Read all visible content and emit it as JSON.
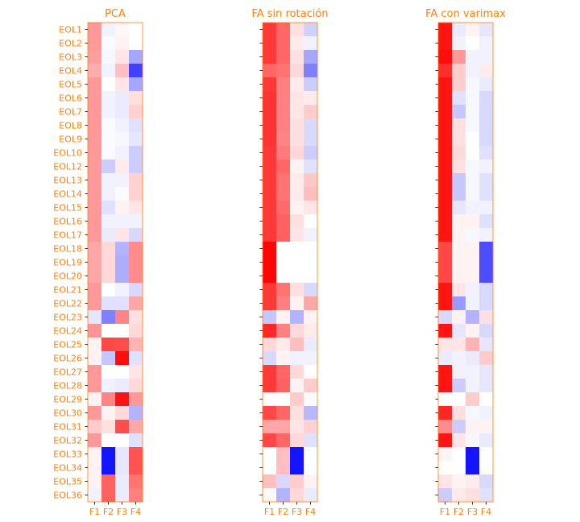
{
  "chart_data": [
    {
      "type": "heatmap",
      "title": "PCA",
      "x_categories": [
        "F1",
        "F2",
        "F3",
        "F4"
      ],
      "y_categories": [
        "EOL1",
        "EOL2",
        "EOL3",
        "EOL4",
        "EOL5",
        "EOL6",
        "EOL7",
        "EOL8",
        "EOL9",
        "EOL10",
        "EOL12",
        "EOL13",
        "EOL14",
        "EOL15",
        "EOL16",
        "EOL17",
        "EOL18",
        "EOL19",
        "EOL20",
        "EOL21",
        "EOL22",
        "EOL23",
        "EOL24",
        "EOL25",
        "EOL26",
        "EOL27",
        "EOL28",
        "EOL29",
        "EOL30",
        "EOL31",
        "EOL32",
        "EOL33",
        "EOL34",
        "EOL35",
        "EOL36"
      ],
      "colormap": "bwr",
      "vlim": [
        -1,
        1
      ],
      "values": [
        [
          0.4,
          -0.05,
          0.03,
          0.0
        ],
        [
          0.4,
          -0.02,
          0.05,
          0.0
        ],
        [
          0.38,
          -0.03,
          0.1,
          -0.35
        ],
        [
          0.32,
          -0.05,
          0.25,
          -0.75
        ],
        [
          0.4,
          0.0,
          0.1,
          -0.35
        ],
        [
          0.4,
          -0.05,
          -0.08,
          0.12
        ],
        [
          0.4,
          -0.05,
          -0.08,
          0.18
        ],
        [
          0.4,
          -0.02,
          -0.05,
          -0.12
        ],
        [
          0.4,
          -0.02,
          -0.03,
          -0.1
        ],
        [
          0.4,
          -0.02,
          -0.05,
          -0.2
        ],
        [
          0.4,
          -0.2,
          0.08,
          -0.2
        ],
        [
          0.4,
          -0.05,
          -0.05,
          0.18
        ],
        [
          0.4,
          -0.05,
          -0.02,
          0.18
        ],
        [
          0.4,
          -0.12,
          0.05,
          0.1
        ],
        [
          0.4,
          -0.05,
          -0.05,
          -0.05
        ],
        [
          0.4,
          -0.08,
          0.1,
          -0.15
        ],
        [
          0.35,
          0.15,
          -0.3,
          0.45
        ],
        [
          0.35,
          0.15,
          -0.32,
          0.45
        ],
        [
          0.35,
          0.15,
          -0.32,
          0.45
        ],
        [
          0.4,
          0.0,
          -0.05,
          -0.15
        ],
        [
          0.4,
          -0.12,
          -0.12,
          0.35
        ],
        [
          -0.1,
          -0.5,
          0.48,
          0.12
        ],
        [
          0.42,
          0.0,
          0.0,
          0.15
        ],
        [
          0.05,
          0.72,
          0.7,
          0.3
        ],
        [
          0.05,
          -0.22,
          0.95,
          -0.12
        ],
        [
          0.4,
          0.0,
          0.0,
          0.1
        ],
        [
          0.4,
          -0.05,
          -0.08,
          0.15
        ],
        [
          0.05,
          0.48,
          0.92,
          0.4
        ],
        [
          0.4,
          0.05,
          0.15,
          -0.3
        ],
        [
          0.2,
          0.12,
          0.7,
          0.35
        ],
        [
          0.4,
          0.0,
          0.0,
          -0.12
        ],
        [
          0.05,
          -0.92,
          -0.1,
          0.68
        ],
        [
          0.05,
          -0.92,
          -0.1,
          0.68
        ],
        [
          0.05,
          0.62,
          -0.08,
          0.55
        ],
        [
          -0.05,
          0.62,
          -0.08,
          0.5
        ]
      ]
    },
    {
      "type": "heatmap",
      "title": "FA sin rotación",
      "x_categories": [
        "F1",
        "F2",
        "F3",
        "F4"
      ],
      "y_categories": [
        "EOL1",
        "EOL2",
        "EOL3",
        "EOL4",
        "EOL5",
        "EOL6",
        "EOL7",
        "EOL8",
        "EOL9",
        "EOL10",
        "EOL12",
        "EOL13",
        "EOL14",
        "EOL15",
        "EOL16",
        "EOL17",
        "EOL18",
        "EOL19",
        "EOL20",
        "EOL21",
        "EOL22",
        "EOL23",
        "EOL24",
        "EOL25",
        "EOL26",
        "EOL27",
        "EOL28",
        "EOL29",
        "EOL30",
        "EOL31",
        "EOL32",
        "EOL33",
        "EOL34",
        "EOL35",
        "EOL36"
      ],
      "colormap": "bwr",
      "vlim": [
        -1,
        1
      ],
      "values": [
        [
          0.78,
          0.6,
          0.12,
          -0.18
        ],
        [
          0.78,
          0.6,
          0.08,
          -0.05
        ],
        [
          0.78,
          0.6,
          0.12,
          -0.35
        ],
        [
          0.6,
          0.55,
          0.15,
          -0.5
        ],
        [
          0.78,
          0.5,
          0.08,
          -0.2
        ],
        [
          0.8,
          0.5,
          0.1,
          0.08
        ],
        [
          0.8,
          0.5,
          0.1,
          0.2
        ],
        [
          0.8,
          0.5,
          0.12,
          -0.15
        ],
        [
          0.8,
          0.48,
          0.12,
          -0.15
        ],
        [
          0.78,
          0.52,
          0.15,
          -0.2
        ],
        [
          0.78,
          0.6,
          0.05,
          -0.12
        ],
        [
          0.78,
          0.55,
          0.08,
          0.22
        ],
        [
          0.78,
          0.55,
          0.08,
          0.25
        ],
        [
          0.78,
          0.58,
          0.05,
          0.1
        ],
        [
          0.78,
          0.62,
          0.12,
          0.0
        ],
        [
          0.78,
          0.62,
          0.1,
          -0.05
        ],
        [
          0.98,
          0.0,
          0.0,
          0.0
        ],
        [
          0.98,
          0.0,
          0.0,
          0.0
        ],
        [
          0.98,
          0.0,
          0.0,
          0.0
        ],
        [
          0.78,
          0.55,
          0.12,
          -0.15
        ],
        [
          0.78,
          0.5,
          0.05,
          0.35
        ],
        [
          -0.22,
          0.05,
          -0.3,
          0.05
        ],
        [
          0.85,
          0.5,
          0.15,
          0.08
        ],
        [
          0.15,
          0.08,
          0.25,
          -0.08
        ],
        [
          -0.15,
          0.05,
          -0.05,
          -0.05
        ],
        [
          0.78,
          0.6,
          0.15,
          0.0
        ],
        [
          0.78,
          0.62,
          0.05,
          0.2
        ],
        [
          0.0,
          0.0,
          0.2,
          -0.02
        ],
        [
          0.72,
          0.6,
          0.12,
          -0.28
        ],
        [
          0.35,
          0.35,
          0.1,
          0.18
        ],
        [
          0.72,
          0.6,
          0.15,
          -0.12
        ],
        [
          0.0,
          0.25,
          -0.92,
          0.0
        ],
        [
          0.0,
          0.25,
          -0.92,
          0.0
        ],
        [
          0.25,
          -0.15,
          0.2,
          0.05
        ],
        [
          0.02,
          -0.3,
          0.15,
          -0.08
        ]
      ]
    },
    {
      "type": "heatmap",
      "title": "FA con varimax",
      "x_categories": [
        "F1",
        "F2",
        "F3",
        "F4"
      ],
      "y_categories": [
        "EOL1",
        "EOL2",
        "EOL3",
        "EOL4",
        "EOL5",
        "EOL6",
        "EOL7",
        "EOL8",
        "EOL9",
        "EOL10",
        "EOL12",
        "EOL13",
        "EOL14",
        "EOL15",
        "EOL16",
        "EOL17",
        "EOL18",
        "EOL19",
        "EOL20",
        "EOL21",
        "EOL22",
        "EOL23",
        "EOL24",
        "EOL25",
        "EOL26",
        "EOL27",
        "EOL28",
        "EOL29",
        "EOL30",
        "EOL31",
        "EOL32",
        "EOL33",
        "EOL34",
        "EOL35",
        "EOL36"
      ],
      "colormap": "bwr",
      "vlim": [
        -1,
        1
      ],
      "values": [
        [
          0.92,
          -0.08,
          0.05,
          -0.1
        ],
        [
          0.92,
          -0.05,
          0.0,
          -0.05
        ],
        [
          0.95,
          0.4,
          -0.05,
          -0.05
        ],
        [
          0.82,
          0.2,
          -0.05,
          0.08
        ],
        [
          0.92,
          0.2,
          -0.03,
          -0.08
        ],
        [
          0.92,
          -0.12,
          -0.03,
          -0.15
        ],
        [
          0.92,
          -0.22,
          -0.03,
          -0.15
        ],
        [
          0.92,
          0.12,
          -0.03,
          -0.15
        ],
        [
          0.92,
          0.12,
          0.0,
          -0.15
        ],
        [
          0.92,
          0.15,
          0.0,
          -0.12
        ],
        [
          0.92,
          0.12,
          -0.03,
          -0.05
        ],
        [
          0.92,
          -0.22,
          -0.03,
          -0.12
        ],
        [
          0.92,
          -0.22,
          -0.03,
          -0.12
        ],
        [
          0.92,
          -0.1,
          -0.05,
          -0.05
        ],
        [
          0.92,
          0.05,
          0.05,
          -0.12
        ],
        [
          0.92,
          0.05,
          -0.03,
          -0.05
        ],
        [
          0.72,
          0.05,
          0.05,
          -0.7
        ],
        [
          0.72,
          0.05,
          0.05,
          -0.7
        ],
        [
          0.72,
          0.05,
          0.05,
          -0.7
        ],
        [
          0.92,
          0.1,
          -0.05,
          -0.15
        ],
        [
          0.92,
          -0.4,
          -0.05,
          -0.15
        ],
        [
          -0.15,
          0.05,
          -0.3,
          0.12
        ],
        [
          0.92,
          -0.1,
          0.05,
          -0.15
        ],
        [
          0.1,
          0.1,
          0.3,
          -0.1
        ],
        [
          -0.08,
          -0.05,
          -0.08,
          0.2
        ],
        [
          0.92,
          -0.05,
          -0.05,
          -0.1
        ],
        [
          0.92,
          -0.2,
          -0.05,
          -0.1
        ],
        [
          0.0,
          0.0,
          0.2,
          0.0
        ],
        [
          0.85,
          0.12,
          -0.03,
          -0.05
        ],
        [
          0.45,
          -0.2,
          0.05,
          0.05
        ],
        [
          0.92,
          0.1,
          -0.03,
          -0.08
        ],
        [
          0.05,
          0.0,
          -0.92,
          0.0
        ],
        [
          0.0,
          0.0,
          -0.92,
          0.0
        ],
        [
          0.1,
          0.05,
          0.08,
          -0.15
        ],
        [
          -0.2,
          0.08,
          0.12,
          -0.12
        ]
      ]
    }
  ]
}
